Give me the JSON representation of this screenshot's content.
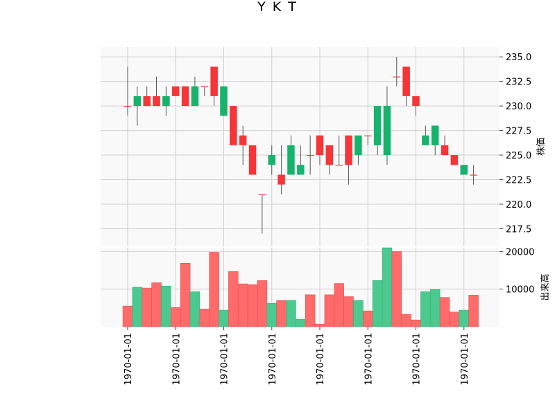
{
  "chart_data": {
    "type": "candlestick",
    "title": "Y K T",
    "price_axis": {
      "label": "株価",
      "ylim": [
        215.7,
        236.0
      ],
      "ticks": [
        "217.5",
        "220.0",
        "222.5",
        "225.0",
        "227.5",
        "230.0",
        "232.5",
        "235.0"
      ]
    },
    "volume_axis": {
      "label": "出来高",
      "ylim": [
        0,
        21000
      ],
      "ticks": [
        "10000",
        "20000"
      ]
    },
    "x_tick_labels": [
      "1970-01-01",
      "1970-01-01",
      "1970-01-01",
      "1970-01-01",
      "1970-01-01",
      "1970-01-01",
      "1970-01-01",
      "1970-01-01"
    ],
    "grid": true,
    "colors": {
      "up": "#15b36b",
      "down": "#f63538",
      "vol_up": "#4cc98f",
      "vol_down": "#ff6b6b"
    },
    "candles": [
      {
        "open": 230,
        "high": 234,
        "low": 229,
        "close": 230,
        "volume": 5500
      },
      {
        "open": 230,
        "high": 232,
        "low": 228,
        "close": 231,
        "volume": 10500
      },
      {
        "open": 231,
        "high": 232,
        "low": 230,
        "close": 230,
        "volume": 10300
      },
      {
        "open": 231,
        "high": 233,
        "low": 230,
        "close": 230,
        "volume": 11700
      },
      {
        "open": 230,
        "high": 232,
        "low": 229,
        "close": 231,
        "volume": 10800
      },
      {
        "open": 232,
        "high": 232,
        "low": 231,
        "close": 231,
        "volume": 5100
      },
      {
        "open": 232,
        "high": 232,
        "low": 230,
        "close": 230,
        "volume": 16900
      },
      {
        "open": 230,
        "high": 233,
        "low": 230,
        "close": 232,
        "volume": 9300
      },
      {
        "open": 232,
        "high": 232,
        "low": 231,
        "close": 232,
        "volume": 4700
      },
      {
        "open": 234,
        "high": 234,
        "low": 230,
        "close": 231,
        "volume": 19800
      },
      {
        "open": 229,
        "high": 232,
        "low": 229,
        "close": 232,
        "volume": 4400
      },
      {
        "open": 230,
        "high": 230,
        "low": 226,
        "close": 226,
        "volume": 14700
      },
      {
        "open": 227,
        "high": 228,
        "low": 224,
        "close": 226,
        "volume": 11400
      },
      {
        "open": 226,
        "high": 226,
        "low": 223,
        "close": 223,
        "volume": 11200
      },
      {
        "open": 221,
        "high": 221,
        "low": 217,
        "close": 221,
        "volume": 12300
      },
      {
        "open": 224,
        "high": 226,
        "low": 223,
        "close": 225,
        "volume": 6200
      },
      {
        "open": 223,
        "high": 226,
        "low": 221,
        "close": 222,
        "volume": 7000
      },
      {
        "open": 223,
        "high": 227,
        "low": 223,
        "close": 226,
        "volume": 7000
      },
      {
        "open": 223,
        "high": 226,
        "low": 223,
        "close": 224,
        "volume": 2000
      },
      {
        "open": 225,
        "high": 227,
        "low": 223,
        "close": 225,
        "volume": 8500
      },
      {
        "open": 227,
        "high": 227,
        "low": 224,
        "close": 225,
        "volume": 700
      },
      {
        "open": 226,
        "high": 226,
        "low": 223,
        "close": 224,
        "volume": 8500
      },
      {
        "open": 224,
        "high": 227,
        "low": 224,
        "close": 224,
        "volume": 11500
      },
      {
        "open": 227,
        "high": 227,
        "low": 222,
        "close": 224,
        "volume": 8000
      },
      {
        "open": 225,
        "high": 227,
        "low": 224,
        "close": 227,
        "volume": 7000
      },
      {
        "open": 227,
        "high": 227,
        "low": 226,
        "close": 227,
        "volume": 4200
      },
      {
        "open": 226,
        "high": 230,
        "low": 225,
        "close": 230,
        "volume": 12300
      },
      {
        "open": 225,
        "high": 232,
        "low": 224,
        "close": 230,
        "volume": 21000
      },
      {
        "open": 233,
        "high": 235,
        "low": 232,
        "close": 233,
        "volume": 20000
      },
      {
        "open": 234,
        "high": 234,
        "low": 230,
        "close": 231,
        "volume": 3300
      },
      {
        "open": 231,
        "high": 231,
        "low": 229,
        "close": 230,
        "volume": 1800
      },
      {
        "open": 226,
        "high": 228,
        "low": 226,
        "close": 227,
        "volume": 9300
      },
      {
        "open": 226,
        "high": 228,
        "low": 225,
        "close": 228,
        "volume": 9900
      },
      {
        "open": 226,
        "high": 227,
        "low": 225,
        "close": 225,
        "volume": 7800
      },
      {
        "open": 225,
        "high": 225,
        "low": 224,
        "close": 224,
        "volume": 3900
      },
      {
        "open": 223,
        "high": 224,
        "low": 223,
        "close": 224,
        "volume": 4400
      },
      {
        "open": 223,
        "high": 224,
        "low": 222,
        "close": 223,
        "volume": 8400
      }
    ]
  }
}
